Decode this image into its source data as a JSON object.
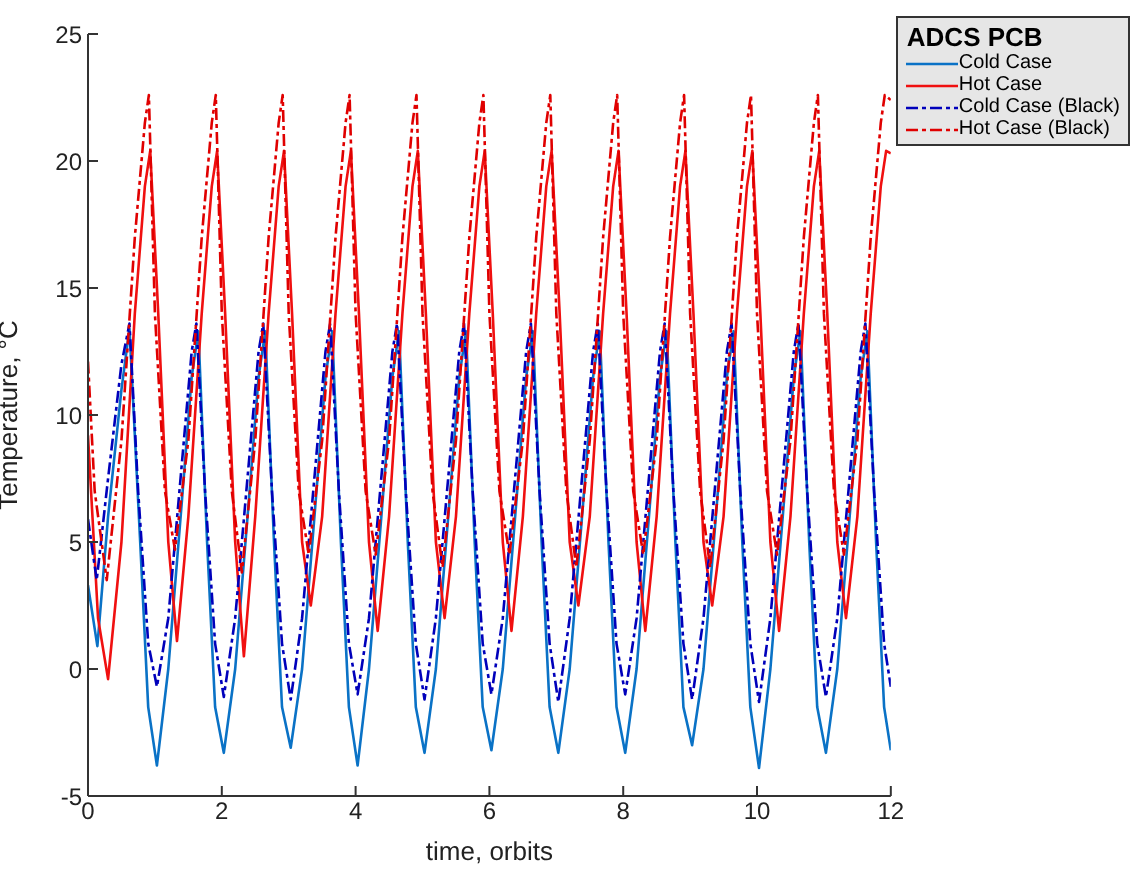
{
  "chart_data": {
    "type": "line",
    "xlabel": "time, orbits",
    "ylabel": "Temperature, °C",
    "legend_title": "ADCS PCB",
    "legend": "top right",
    "grid": false,
    "xlim": [
      0,
      12
    ],
    "xticks": [
      0,
      2,
      4,
      6,
      8,
      10,
      12
    ],
    "ylim": [
      -5,
      25
    ],
    "yticks": [
      -5,
      0,
      5,
      10,
      15,
      20,
      25
    ],
    "series": [
      {
        "name": "Cold Case",
        "color": "#0a72c6",
        "line_style": "solid",
        "x": [
          0,
          0.14,
          0.3,
          0.5,
          0.62,
          0.78,
          0.9,
          1.03,
          1.2,
          1.4,
          1.55,
          1.65,
          1.78,
          1.9,
          2.03,
          2.2,
          2.4,
          2.55,
          2.65,
          2.78,
          2.9,
          3.03,
          3.2,
          3.4,
          3.55,
          3.65,
          3.78,
          3.9,
          4.03,
          4.2,
          4.4,
          4.55,
          4.65,
          4.78,
          4.9,
          5.03,
          5.2,
          5.4,
          5.55,
          5.65,
          5.78,
          5.9,
          6.03,
          6.2,
          6.4,
          6.55,
          6.65,
          6.78,
          6.9,
          7.03,
          7.2,
          7.4,
          7.55,
          7.65,
          7.78,
          7.9,
          8.03,
          8.2,
          8.4,
          8.55,
          8.65,
          8.78,
          8.9,
          9.03,
          9.2,
          9.4,
          9.55,
          9.65,
          9.78,
          9.9,
          10.03,
          10.2,
          10.4,
          10.55,
          10.65,
          10.78,
          10.9,
          11.03,
          11.2,
          11.4,
          11.55,
          11.65,
          11.78,
          11.9,
          12
        ],
        "values": [
          3.3,
          0.9,
          6,
          11,
          13.4,
          5,
          -1.5,
          -3.8,
          0,
          6.5,
          11.5,
          13.3,
          5,
          -1.5,
          -3.3,
          0,
          6.5,
          11.5,
          13.3,
          5,
          -1.5,
          -3.1,
          0,
          6.5,
          11.5,
          13.3,
          5,
          -1.5,
          -3.8,
          0,
          6.5,
          11.5,
          13.3,
          5,
          -1.5,
          -3.3,
          0,
          6.5,
          11.5,
          13.3,
          5,
          -1.5,
          -3.2,
          0,
          6.5,
          11.5,
          13.3,
          5,
          -1.5,
          -3.3,
          0,
          6.5,
          11.5,
          13.3,
          5,
          -1.5,
          -3.3,
          0,
          6.5,
          11.5,
          13.3,
          5,
          -1.5,
          -3,
          0,
          6.5,
          11.5,
          13.3,
          5,
          -1.5,
          -3.9,
          0,
          6.5,
          11.5,
          13.3,
          5,
          -1.5,
          -3.3,
          0,
          6.5,
          11.5,
          13.3,
          5,
          -1.5,
          -3.2
        ]
      },
      {
        "name": "Hot Case",
        "color": "#f01010",
        "line_style": "solid",
        "x": [
          0,
          0.15,
          0.3,
          0.5,
          0.7,
          0.85,
          0.93,
          1.05,
          1.2,
          1.33,
          1.5,
          1.7,
          1.85,
          1.93,
          2.05,
          2.2,
          2.33,
          2.5,
          2.7,
          2.85,
          2.93,
          3.05,
          3.2,
          3.33,
          3.5,
          3.7,
          3.85,
          3.93,
          4.05,
          4.2,
          4.33,
          4.5,
          4.7,
          4.85,
          4.93,
          5.05,
          5.2,
          5.33,
          5.5,
          5.7,
          5.85,
          5.93,
          6.05,
          6.2,
          6.33,
          6.5,
          6.7,
          6.85,
          6.93,
          7.05,
          7.2,
          7.33,
          7.5,
          7.7,
          7.85,
          7.93,
          8.05,
          8.2,
          8.33,
          8.5,
          8.7,
          8.85,
          8.93,
          9.05,
          9.2,
          9.33,
          9.5,
          9.7,
          9.85,
          9.93,
          10.05,
          10.2,
          10.33,
          10.5,
          10.7,
          10.85,
          10.93,
          11.05,
          11.2,
          11.33,
          11.5,
          11.7,
          11.85,
          11.93,
          12
        ],
        "values": [
          9.2,
          2,
          -0.4,
          5,
          14,
          19,
          20.4,
          14,
          5,
          1.1,
          6,
          14,
          19,
          20.4,
          14,
          5,
          0.5,
          6,
          14,
          19,
          20.4,
          14,
          5,
          2.5,
          6,
          14,
          19,
          20.4,
          14,
          5,
          1.5,
          6,
          14,
          19,
          20.4,
          14,
          5,
          2,
          6,
          14,
          19,
          20.4,
          14,
          5,
          1.5,
          6,
          14,
          19,
          20.4,
          14,
          5,
          2.5,
          6,
          14,
          19,
          20.4,
          14,
          5,
          1.5,
          6,
          14,
          19,
          20.4,
          14,
          5,
          2.5,
          6,
          14,
          19,
          20.4,
          14,
          5,
          1.5,
          6,
          14,
          19,
          20.4,
          14,
          5,
          2,
          6,
          14,
          19,
          20.4,
          20.3
        ]
      },
      {
        "name": "Cold Case (Black)",
        "color": "#0000bb",
        "line_style": "dashed",
        "x": [
          0,
          0.13,
          0.3,
          0.5,
          0.62,
          0.75,
          0.9,
          1.03,
          1.2,
          1.4,
          1.55,
          1.62,
          1.75,
          1.9,
          2.03,
          2.2,
          2.4,
          2.55,
          2.62,
          2.75,
          2.9,
          3.03,
          3.2,
          3.4,
          3.55,
          3.62,
          3.75,
          3.9,
          4.03,
          4.2,
          4.4,
          4.55,
          4.62,
          4.75,
          4.9,
          5.03,
          5.2,
          5.4,
          5.55,
          5.62,
          5.75,
          5.9,
          6.03,
          6.2,
          6.4,
          6.55,
          6.62,
          6.75,
          6.9,
          7.03,
          7.2,
          7.4,
          7.55,
          7.62,
          7.75,
          7.9,
          8.03,
          8.2,
          8.4,
          8.55,
          8.62,
          8.75,
          8.9,
          9.03,
          9.2,
          9.4,
          9.55,
          9.62,
          9.75,
          9.9,
          10.03,
          10.2,
          10.4,
          10.55,
          10.62,
          10.75,
          10.9,
          11.03,
          11.2,
          11.4,
          11.55,
          11.62,
          11.75,
          11.9,
          12
        ],
        "values": [
          5.9,
          3.5,
          7.5,
          12,
          13.6,
          7,
          1,
          -0.7,
          2,
          8,
          12.5,
          13.6,
          7,
          1,
          -1.1,
          2,
          8,
          12.5,
          13.6,
          7,
          1,
          -1.2,
          2,
          8,
          12.5,
          13.6,
          7,
          1,
          -1,
          2,
          8,
          12.5,
          13.6,
          7,
          1,
          -1.2,
          2,
          8,
          12.5,
          13.6,
          7,
          1,
          -1,
          2,
          8,
          12.5,
          13.6,
          7,
          1,
          -1.3,
          2,
          8,
          12.5,
          13.6,
          7,
          1,
          -1,
          2,
          8,
          12.5,
          13.6,
          7,
          1,
          -1.2,
          2,
          8,
          12.5,
          13.6,
          7,
          1,
          -1.3,
          2,
          8,
          12.5,
          13.6,
          7,
          1,
          -1.1,
          2,
          8,
          12.5,
          13.6,
          7,
          1,
          -0.7
        ]
      },
      {
        "name": "Hot Case (Black)",
        "color": "#e00000",
        "line_style": "dashed",
        "x": [
          0,
          0.1,
          0.28,
          0.5,
          0.7,
          0.85,
          0.91,
          1.0,
          1.15,
          1.3,
          1.5,
          1.7,
          1.85,
          1.91,
          2.0,
          2.15,
          2.3,
          2.5,
          2.7,
          2.85,
          2.91,
          3.0,
          3.15,
          3.3,
          3.5,
          3.7,
          3.85,
          3.91,
          4.0,
          4.15,
          4.3,
          4.5,
          4.7,
          4.85,
          4.91,
          5.0,
          5.15,
          5.3,
          5.5,
          5.7,
          5.85,
          5.91,
          6.0,
          6.15,
          6.3,
          6.5,
          6.7,
          6.85,
          6.91,
          7.0,
          7.15,
          7.3,
          7.5,
          7.7,
          7.85,
          7.91,
          8.0,
          8.15,
          8.3,
          8.5,
          8.7,
          8.85,
          8.91,
          9.0,
          9.15,
          9.3,
          9.5,
          9.7,
          9.85,
          9.91,
          10.0,
          10.15,
          10.3,
          10.5,
          10.7,
          10.85,
          10.91,
          11.0,
          11.15,
          11.3,
          11.5,
          11.7,
          11.85,
          11.91,
          12
        ],
        "values": [
          12.1,
          7,
          3.5,
          9,
          17,
          21.5,
          22.6,
          14,
          7,
          4.7,
          9,
          17,
          21.5,
          22.6,
          14,
          7,
          3.8,
          9,
          17,
          21.5,
          22.6,
          14,
          7,
          4.5,
          9,
          17,
          21.5,
          22.6,
          14,
          7,
          4.5,
          9,
          17,
          21.5,
          22.6,
          14,
          7,
          4,
          9,
          17,
          21.5,
          22.6,
          14,
          7,
          4.5,
          9,
          17,
          21.5,
          22.6,
          14,
          7,
          4,
          9,
          17,
          21.5,
          22.6,
          14,
          7,
          4.5,
          9,
          17,
          21.5,
          22.6,
          14,
          7,
          4,
          9,
          17,
          21.5,
          22.6,
          14,
          7,
          4.5,
          9,
          17,
          21.5,
          22.6,
          14,
          7,
          4.5,
          9,
          17,
          21.5,
          22.6,
          22.4
        ]
      }
    ]
  }
}
